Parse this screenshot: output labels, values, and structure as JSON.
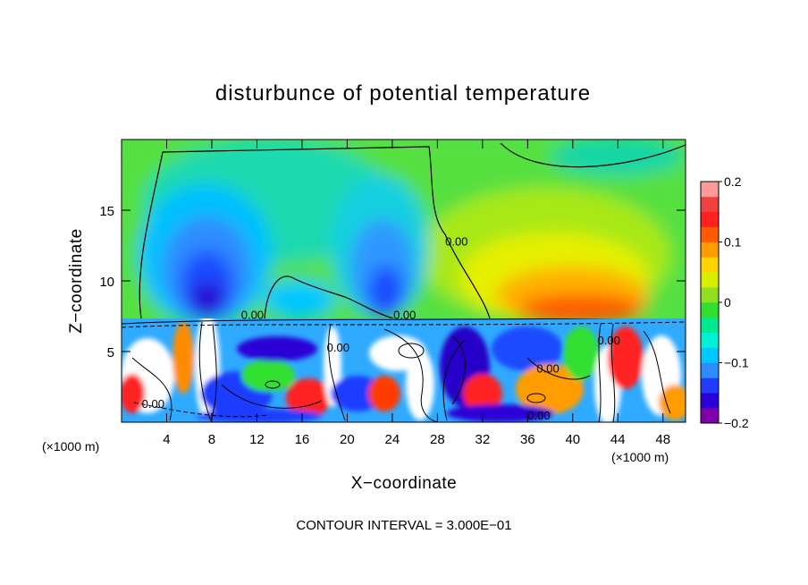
{
  "chart_data": {
    "type": "heatmap",
    "title": "disturbunce of potential temperature",
    "xlabel": "X−coordinate",
    "ylabel": "Z−coordinate",
    "x_unit_left": "(×1000 m)",
    "x_unit_right": "(×1000 m)",
    "xlim": [
      0,
      50
    ],
    "ylim": [
      0,
      20
    ],
    "xticks": [
      {
        "value": 4,
        "label": "4"
      },
      {
        "value": 8,
        "label": "8"
      },
      {
        "value": 12,
        "label": "12"
      },
      {
        "value": 16,
        "label": "16"
      },
      {
        "value": 20,
        "label": "20"
      },
      {
        "value": 24,
        "label": "24"
      },
      {
        "value": 28,
        "label": "28"
      },
      {
        "value": 32,
        "label": "32"
      },
      {
        "value": 36,
        "label": "36"
      },
      {
        "value": 40,
        "label": "40"
      },
      {
        "value": 44,
        "label": "44"
      },
      {
        "value": 48,
        "label": "48"
      }
    ],
    "yticks": [
      {
        "value": 5,
        "label": "5"
      },
      {
        "value": 10,
        "label": "10"
      },
      {
        "value": 15,
        "label": "15"
      }
    ],
    "colorbar": {
      "min": -0.2,
      "max": 0.2,
      "ticks": [
        {
          "value": 0.2,
          "label": "0.2"
        },
        {
          "value": 0.1,
          "label": "0.1"
        },
        {
          "value": 0,
          "label": "0"
        },
        {
          "value": -0.1,
          "label": "−0.1"
        },
        {
          "value": -0.2,
          "label": "−0.2"
        }
      ],
      "colors": [
        "#7f00a8",
        "#2a00d6",
        "#1f3cff",
        "#2f8cff",
        "#00c8ff",
        "#00f0d8",
        "#00e890",
        "#30e030",
        "#90e020",
        "#d8f000",
        "#ffd200",
        "#ff9c00",
        "#ff5a00",
        "#ff2020",
        "#f04040",
        "#ff9a9a"
      ]
    },
    "contour_labels": [
      {
        "x": 29.7,
        "y": 12.5,
        "text": "0.00"
      },
      {
        "x": 11.6,
        "y": 7.3,
        "text": "0.00"
      },
      {
        "x": 25.1,
        "y": 7.3,
        "text": "0.00"
      },
      {
        "x": 2.8,
        "y": 1.0,
        "text": "0.00"
      },
      {
        "x": 19.2,
        "y": 5.0,
        "text": "0.00"
      },
      {
        "x": 37.8,
        "y": 3.5,
        "text": "0.00"
      },
      {
        "x": 37.0,
        "y": 0.2,
        "text": "0.00"
      },
      {
        "x": 43.2,
        "y": 5.5,
        "text": "0.00"
      }
    ],
    "footer": "CONTOUR INTERVAL = 3.000E−01"
  }
}
